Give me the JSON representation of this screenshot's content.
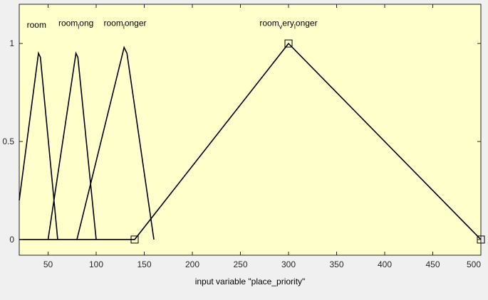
{
  "chart_data": {
    "type": "line",
    "xlabel": "input variable \"place_priority\"",
    "xlim": [
      20,
      500
    ],
    "ylim": [
      -0.08,
      1.2
    ],
    "xticks": [
      50,
      100,
      150,
      200,
      250,
      300,
      350,
      400,
      450,
      500
    ],
    "yticks": [
      0,
      0.5,
      1
    ],
    "ytick_labels": [
      "0",
      "0.5",
      "1"
    ],
    "grid": false,
    "legend": "none",
    "colors": {
      "plot_background": "#ffffcc",
      "figure_background": "#f0f0f0",
      "line": "#000000",
      "axis": "#262626"
    },
    "series": [
      {
        "name": "room",
        "label_main": "room",
        "label_sub": "",
        "label_rest": "",
        "label_anchor": [
          38,
          1.08
        ],
        "x": [
          20,
          40,
          42,
          60
        ],
        "y": [
          0.2,
          0.95,
          0.93,
          0
        ],
        "markers": []
      },
      {
        "name": "room_long",
        "label_main": "room",
        "label_sub": "l",
        "label_rest": "ong",
        "label_anchor": [
          79,
          1.09
        ],
        "x": [
          50,
          79,
          81,
          100
        ],
        "y": [
          0,
          0.95,
          0.93,
          0
        ],
        "markers": []
      },
      {
        "name": "room_longer",
        "label_main": "room",
        "label_sub": "l",
        "label_rest": "onger",
        "label_anchor": [
          130,
          1.09
        ],
        "x": [
          80,
          129,
          132,
          160
        ],
        "y": [
          0,
          0.98,
          0.95,
          0
        ],
        "markers": []
      },
      {
        "name": "room_very_longer",
        "label_main": "room",
        "label_sub": "v",
        "label_rest": "ery",
        "label_sub2": "l",
        "label_rest2": "onger",
        "label_anchor": [
          300,
          1.09
        ],
        "x": [
          20,
          140,
          300,
          500
        ],
        "y": [
          0,
          0,
          1,
          0
        ],
        "markers": [
          [
            140,
            0
          ],
          [
            300,
            1
          ],
          [
            500,
            0
          ]
        ]
      }
    ]
  }
}
